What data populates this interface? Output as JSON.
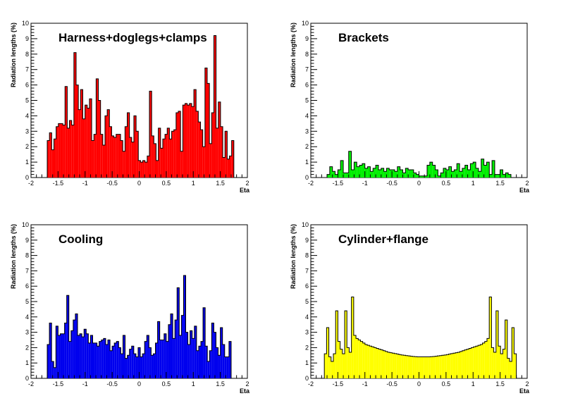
{
  "chart_data": [
    {
      "type": "bar",
      "title": "Harness+doglegs+clamps",
      "xlabel": "Eta",
      "ylabel": "Radiation lengths (%)",
      "xlim": [
        -2,
        2
      ],
      "ylim": [
        0,
        10
      ],
      "x_ticks": [
        "-2",
        "-1.5",
        "-1",
        "-0.5",
        "0",
        "0.5",
        "1",
        "1.5",
        "2"
      ],
      "y_ticks": [
        "0",
        "1",
        "2",
        "3",
        "4",
        "5",
        "6",
        "7",
        "8",
        "9",
        "10"
      ],
      "bin_range": [
        -1.7,
        1.75
      ],
      "fill_color": "#ff0000",
      "values": [
        2.4,
        2.9,
        1.8,
        2.5,
        3.3,
        3.5,
        3.5,
        3.4,
        5.9,
        3.2,
        3.7,
        3.4,
        8.1,
        6.0,
        4.4,
        5.7,
        3.8,
        4.7,
        4.5,
        5.1,
        2.4,
        2.8,
        6.4,
        5.0,
        2.8,
        2.1,
        4.0,
        4.4,
        3.3,
        2.7,
        2.6,
        2.8,
        2.8,
        2.4,
        1.7,
        3.3,
        4.2,
        2.6,
        2.3,
        4.0,
        3.0,
        1.1,
        1.0,
        1.1,
        1.0,
        1.4,
        5.6,
        2.7,
        2.2,
        1.1,
        3.2,
        1.9,
        2.5,
        2.8,
        3.2,
        2.5,
        3.0,
        3.1,
        4.2,
        4.3,
        1.7,
        4.7,
        4.8,
        4.7,
        4.8,
        4.6,
        5.7,
        4.3,
        3.6,
        3.1,
        2.0,
        7.1,
        6.1,
        2.2,
        4.2,
        9.2,
        3.2,
        4.9,
        3.3,
        1.3,
        3.0,
        1.2,
        1.4,
        2.4
      ]
    },
    {
      "type": "bar",
      "title": "Brackets",
      "xlabel": "Eta",
      "ylabel": "Radiation lengths (%)",
      "xlim": [
        -2,
        2
      ],
      "ylim": [
        0,
        10
      ],
      "x_ticks": [
        "-2",
        "-1.5",
        "-1",
        "-0.5",
        "0",
        "0.5",
        "1",
        "1.5",
        "2"
      ],
      "y_ticks": [
        "0",
        "1",
        "2",
        "3",
        "4",
        "5",
        "6",
        "7",
        "8",
        "9",
        "10"
      ],
      "bin_range": [
        -1.7,
        1.7
      ],
      "fill_color": "#00ee00",
      "values": [
        0.2,
        0.7,
        0.4,
        0.2,
        0.5,
        1.1,
        0.3,
        0.3,
        1.7,
        0.5,
        1.0,
        0.7,
        0.8,
        0.9,
        0.6,
        0.7,
        0.4,
        0.6,
        0.8,
        0.5,
        0.6,
        0.4,
        0.6,
        0.5,
        0.5,
        0.4,
        0.7,
        0.5,
        0.3,
        0.6,
        0.5,
        0.5,
        0.3,
        0.2,
        0.1,
        0.1,
        0.1,
        0.8,
        1.0,
        0.8,
        0.5,
        0.1,
        0.3,
        0.6,
        0.5,
        0.7,
        0.4,
        0.5,
        0.9,
        0.4,
        0.6,
        0.8,
        0.5,
        0.9,
        1.0,
        0.6,
        0.4,
        1.2,
        0.8,
        1.0,
        0.2,
        1.1,
        0.2,
        0.2,
        0.5,
        0.2,
        0.3,
        0.2
      ]
    },
    {
      "type": "bar",
      "title": "Cooling",
      "xlabel": "Eta",
      "ylabel": "Radiation lengths (%)",
      "xlim": [
        -2,
        2
      ],
      "ylim": [
        0,
        10
      ],
      "x_ticks": [
        "-2",
        "-1.5",
        "-1",
        "-0.5",
        "0",
        "0.5",
        "1",
        "1.5",
        "2"
      ],
      "y_ticks": [
        "0",
        "1",
        "2",
        "3",
        "4",
        "5",
        "6",
        "7",
        "8",
        "9",
        "10"
      ],
      "bin_range": [
        -1.7,
        1.7
      ],
      "fill_color": "#0000ee",
      "values": [
        2.2,
        3.6,
        1.1,
        0.7,
        3.4,
        2.8,
        2.9,
        2.9,
        3.6,
        5.4,
        2.4,
        3.1,
        3.8,
        4.2,
        2.8,
        2.9,
        2.7,
        3.2,
        2.9,
        2.3,
        2.8,
        2.3,
        2.3,
        2.1,
        2.4,
        2.5,
        2.6,
        2.2,
        2.5,
        1.8,
        2.1,
        2.3,
        2.4,
        2.0,
        1.6,
        2.8,
        1.3,
        1.5,
        1.9,
        2.1,
        1.6,
        1.4,
        2.0,
        1.4,
        1.6,
        2.4,
        2.8,
        2.0,
        1.5,
        1.6,
        2.3,
        3.7,
        2.5,
        2.5,
        2.9,
        2.4,
        3.5,
        4.2,
        2.6,
        3.8,
        5.9,
        2.8,
        4.1,
        6.7,
        3.0,
        2.2,
        3.1,
        2.6,
        3.4,
        1.8,
        2.1,
        2.4,
        4.6,
        2.1,
        1.1,
        1.8,
        3.6,
        3.0,
        2.0,
        1.5,
        3.3,
        2.2,
        1.4,
        1.4,
        2.4
      ]
    },
    {
      "type": "bar",
      "title": "Cylinder+flange",
      "xlabel": "Eta",
      "ylabel": "Radiation lengths (%)",
      "xlim": [
        -2,
        2
      ],
      "ylim": [
        0,
        10
      ],
      "x_ticks": [
        "-2",
        "-1.5",
        "-1",
        "-0.5",
        "0",
        "0.5",
        "1",
        "1.5",
        "2"
      ],
      "y_ticks": [
        "0",
        "1",
        "2",
        "3",
        "4",
        "5",
        "6",
        "7",
        "8",
        "9",
        "10"
      ],
      "bin_range": [
        -1.75,
        1.8
      ],
      "fill_color": "#ffff00",
      "values": [
        1.6,
        3.3,
        1.4,
        1.1,
        1.6,
        4.4,
        2.4,
        1.9,
        1.6,
        4.4,
        2.0,
        1.7,
        5.3,
        2.8,
        2.6,
        2.5,
        2.4,
        2.3,
        2.2,
        2.15,
        2.1,
        2.05,
        2.0,
        1.95,
        1.9,
        1.85,
        1.8,
        1.75,
        1.7,
        1.67,
        1.64,
        1.61,
        1.58,
        1.55,
        1.52,
        1.5,
        1.48,
        1.46,
        1.44,
        1.42,
        1.41,
        1.4,
        1.4,
        1.4,
        1.4,
        1.4,
        1.4,
        1.41,
        1.42,
        1.44,
        1.46,
        1.48,
        1.5,
        1.52,
        1.55,
        1.58,
        1.61,
        1.64,
        1.67,
        1.7,
        1.75,
        1.8,
        1.85,
        1.9,
        1.95,
        2.0,
        2.05,
        2.1,
        2.15,
        2.2,
        2.3,
        2.4,
        2.6,
        5.3,
        2.0,
        1.7,
        4.4,
        2.1,
        1.6,
        1.9,
        3.8,
        1.3,
        1.1,
        3.3,
        1.6
      ]
    }
  ]
}
